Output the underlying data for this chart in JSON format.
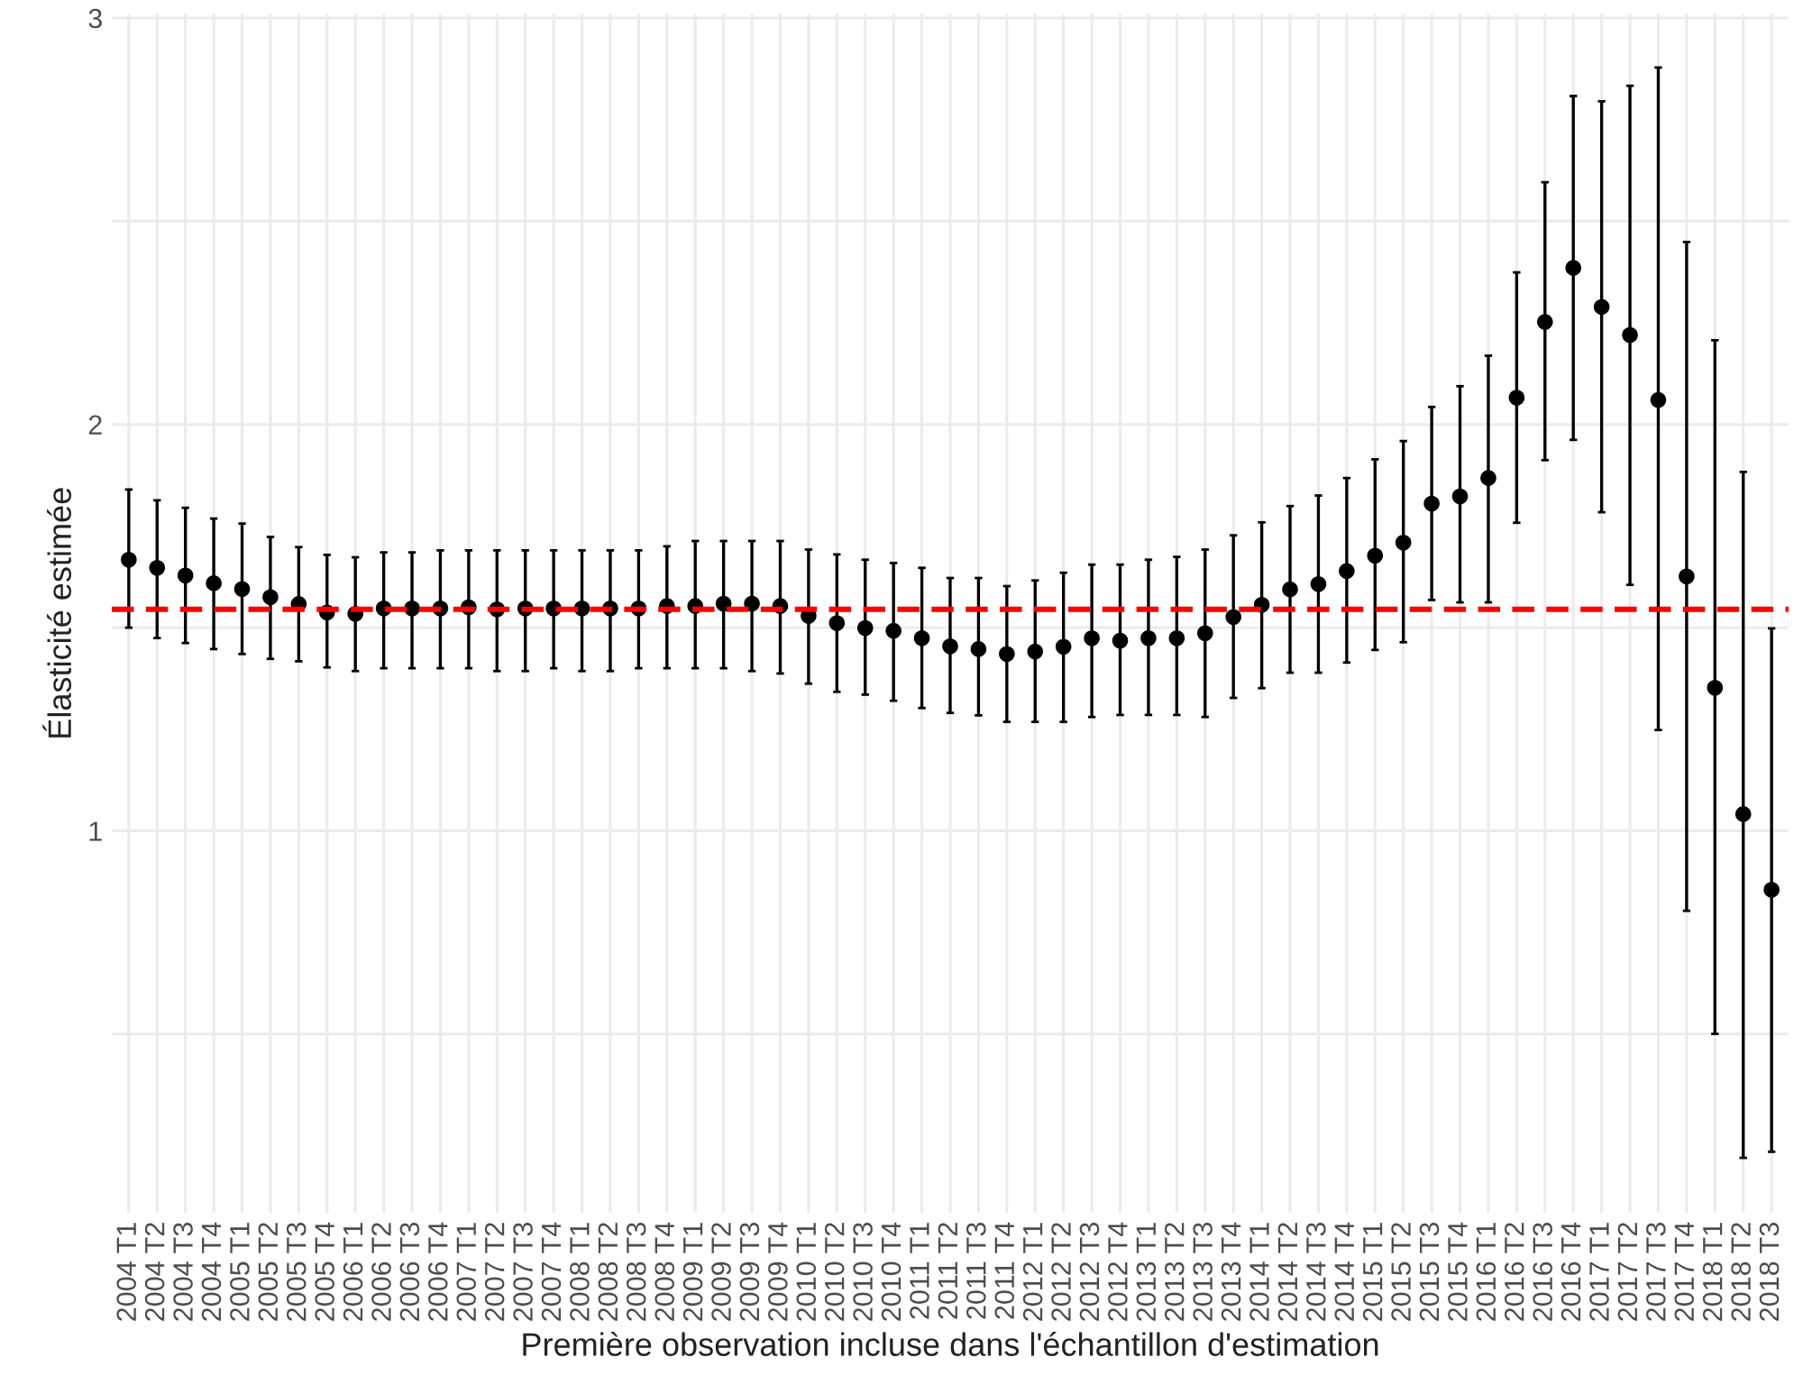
{
  "chart_data": {
    "type": "scatter",
    "xlabel": "Première observation incluse dans l'échantillon d'estimation",
    "ylabel": "Élasticité estimée",
    "categories": [
      "2004 T1",
      "2004 T2",
      "2004 T3",
      "2004 T4",
      "2005 T1",
      "2005 T2",
      "2005 T3",
      "2005 T4",
      "2006 T1",
      "2006 T2",
      "2006 T3",
      "2006 T4",
      "2007 T1",
      "2007 T2",
      "2007 T3",
      "2007 T4",
      "2008 T1",
      "2008 T2",
      "2008 T3",
      "2008 T4",
      "2009 T1",
      "2009 T2",
      "2009 T3",
      "2009 T4",
      "2010 T1",
      "2010 T2",
      "2010 T3",
      "2010 T4",
      "2011 T1",
      "2011 T2",
      "2011 T3",
      "2011 T4",
      "2012 T1",
      "2012 T2",
      "2012 T3",
      "2012 T4",
      "2013 T1",
      "2013 T2",
      "2013 T3",
      "2013 T4",
      "2014 T1",
      "2014 T2",
      "2014 T3",
      "2014 T4",
      "2015 T1",
      "2015 T2",
      "2015 T3",
      "2015 T4",
      "2016 T1",
      "2016 T2",
      "2016 T3",
      "2016 T4",
      "2017 T1",
      "2017 T2",
      "2017 T3",
      "2017 T4",
      "2018 T1",
      "2018 T2",
      "2018 T3"
    ],
    "series": [
      {
        "color": "#000000",
        "values": [
          1.667,
          1.647,
          1.628,
          1.609,
          1.595,
          1.575,
          1.558,
          1.537,
          1.534,
          1.547,
          1.547,
          1.547,
          1.55,
          1.545,
          1.547,
          1.547,
          1.547,
          1.547,
          1.547,
          1.553,
          1.553,
          1.559,
          1.559,
          1.553,
          1.529,
          1.511,
          1.499,
          1.492,
          1.474,
          1.454,
          1.447,
          1.435,
          1.441,
          1.453,
          1.474,
          1.468,
          1.474,
          1.474,
          1.486,
          1.526,
          1.556,
          1.594,
          1.607,
          1.639,
          1.677,
          1.709,
          1.805,
          1.823,
          1.868,
          2.066,
          2.252,
          2.385,
          2.289,
          2.22,
          2.06,
          1.626,
          1.352,
          1.041,
          0.855
        ],
        "errors": [
          [
            1.5,
            1.84
          ],
          [
            1.474,
            1.813
          ],
          [
            1.462,
            1.795
          ],
          [
            1.447,
            1.768
          ],
          [
            1.435,
            1.756
          ],
          [
            1.423,
            1.723
          ],
          [
            1.417,
            1.698
          ],
          [
            1.402,
            1.679
          ],
          [
            1.393,
            1.673
          ],
          [
            1.4,
            1.685
          ],
          [
            1.4,
            1.685
          ],
          [
            1.4,
            1.69
          ],
          [
            1.4,
            1.69
          ],
          [
            1.393,
            1.69
          ],
          [
            1.393,
            1.69
          ],
          [
            1.4,
            1.69
          ],
          [
            1.393,
            1.69
          ],
          [
            1.393,
            1.69
          ],
          [
            1.4,
            1.69
          ],
          [
            1.4,
            1.7
          ],
          [
            1.4,
            1.713
          ],
          [
            1.4,
            1.713
          ],
          [
            1.393,
            1.713
          ],
          [
            1.387,
            1.713
          ],
          [
            1.362,
            1.692
          ],
          [
            1.342,
            1.68
          ],
          [
            1.335,
            1.667
          ],
          [
            1.32,
            1.659
          ],
          [
            1.302,
            1.647
          ],
          [
            1.29,
            1.622
          ],
          [
            1.284,
            1.622
          ],
          [
            1.268,
            1.602
          ],
          [
            1.268,
            1.616
          ],
          [
            1.268,
            1.635
          ],
          [
            1.28,
            1.655
          ],
          [
            1.285,
            1.655
          ],
          [
            1.285,
            1.667
          ],
          [
            1.285,
            1.674
          ],
          [
            1.28,
            1.692
          ],
          [
            1.327,
            1.727
          ],
          [
            1.351,
            1.759
          ],
          [
            1.389,
            1.799
          ],
          [
            1.389,
            1.825
          ],
          [
            1.414,
            1.868
          ],
          [
            1.445,
            1.914
          ],
          [
            1.464,
            1.959
          ],
          [
            1.568,
            2.043
          ],
          [
            1.562,
            2.094
          ],
          [
            1.562,
            2.169
          ],
          [
            1.758,
            2.374
          ],
          [
            1.912,
            2.596
          ],
          [
            1.962,
            2.808
          ],
          [
            1.784,
            2.795
          ],
          [
            1.605,
            2.833
          ],
          [
            1.248,
            2.878
          ],
          [
            0.803,
            2.449
          ],
          [
            0.5,
            2.207
          ],
          [
            0.195,
            1.883
          ],
          [
            0.21,
            1.498
          ]
        ]
      }
    ],
    "ylim": [
      0.06,
      3.01
    ],
    "yticks": [
      {
        "value": 0.5,
        "label": null
      },
      1,
      {
        "value": 1.5,
        "label": null
      },
      2,
      {
        "value": 2.5,
        "label": null
      },
      3
    ],
    "ref_lines": [
      {
        "axis": "y",
        "value": 1.545,
        "color": "#ff0000",
        "line_style": "dashed"
      }
    ],
    "grid": true,
    "marker": "circle",
    "legend": false
  }
}
